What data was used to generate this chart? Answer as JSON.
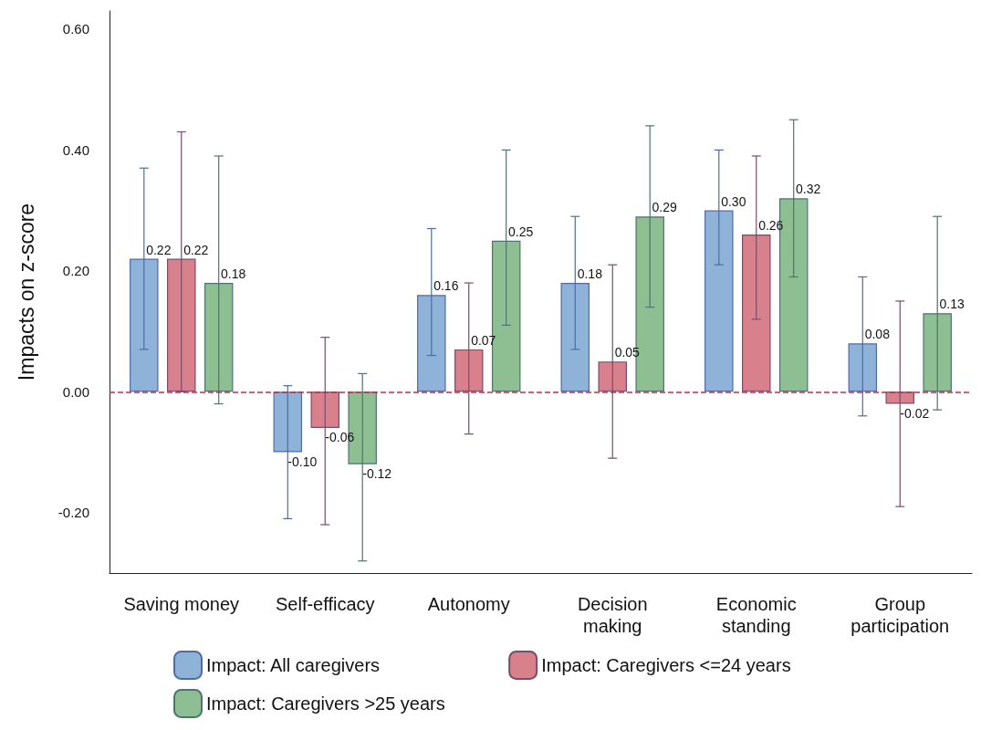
{
  "chart_data": {
    "type": "bar",
    "ylabel": "Impacts on z-score",
    "categories": [
      "Saving money",
      "Self-efficacy",
      "Autonomy",
      "Decision\nmaking",
      "Economic\nstanding",
      "Group\nparticipation"
    ],
    "series": [
      {
        "name": "Impact: All caregivers",
        "color": "#8fb2d9",
        "values": [
          0.22,
          -0.1,
          0.16,
          0.18,
          0.3,
          0.08
        ],
        "value_labels": [
          "0.22",
          "-0.10",
          "0.16",
          "0.18",
          "0.30",
          "0.08"
        ],
        "errors": [
          [
            0.07,
            0.37
          ],
          [
            -0.21,
            0.01
          ],
          [
            0.06,
            0.27
          ],
          [
            0.07,
            0.29
          ],
          [
            0.21,
            0.4
          ],
          [
            -0.04,
            0.19
          ]
        ]
      },
      {
        "name": "Impact: Caregivers <=24 years",
        "color": "#d9808d",
        "values": [
          0.22,
          -0.06,
          0.07,
          0.05,
          0.26,
          -0.02
        ],
        "value_labels": [
          "0.22",
          "-0.06",
          "0.07",
          "0.05",
          "0.26",
          "-0.02"
        ],
        "errors": [
          [
            0.0,
            0.43
          ],
          [
            -0.22,
            0.09
          ],
          [
            -0.07,
            0.18
          ],
          [
            -0.11,
            0.21
          ],
          [
            0.12,
            0.39
          ],
          [
            -0.19,
            0.15
          ]
        ]
      },
      {
        "name": "Impact: Caregivers >25 years",
        "color": "#8dbf93",
        "values": [
          0.18,
          -0.12,
          0.25,
          0.29,
          0.32,
          0.13
        ],
        "value_labels": [
          "0.18",
          "-0.12",
          "0.25",
          "0.29",
          "0.32",
          "0.13"
        ],
        "errors": [
          [
            -0.02,
            0.39
          ],
          [
            -0.28,
            0.03
          ],
          [
            0.11,
            0.4
          ],
          [
            0.14,
            0.44
          ],
          [
            0.19,
            0.45
          ],
          [
            -0.03,
            0.29
          ]
        ]
      }
    ],
    "ylim": [
      -0.3,
      0.63
    ],
    "yticks": [
      {
        "value": -0.2,
        "label": "-0.20"
      },
      {
        "value": 0,
        "label": "0.00"
      },
      {
        "value": 0.2,
        "label": "0.20"
      },
      {
        "value": 0.4,
        "label": "0.40"
      },
      {
        "value": 0.6,
        "label": "0.60"
      }
    ],
    "ref_lines": [
      {
        "axis": "y",
        "value": 0,
        "color": "#c0304a",
        "line_style": "dashed"
      }
    ],
    "grid": false,
    "legend": "bottom"
  }
}
